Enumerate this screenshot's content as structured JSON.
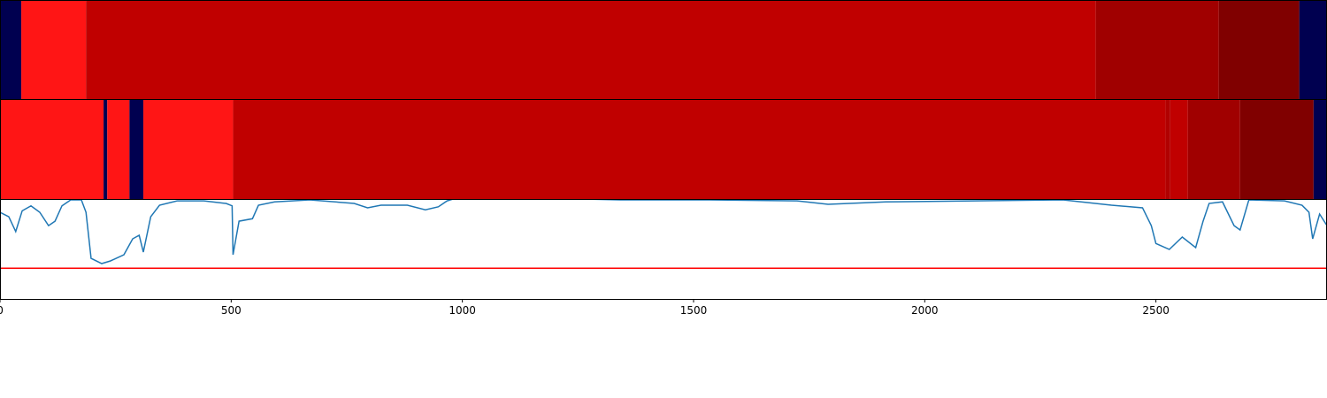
{
  "chart_data": [
    {
      "type": "strip",
      "xlim": [
        0,
        2870
      ],
      "segments": [
        {
          "start": 0,
          "end": 46,
          "color": "#000050"
        },
        {
          "start": 46,
          "end": 186,
          "color": "#ff1515"
        },
        {
          "start": 186,
          "end": 2370,
          "color": "#c00000"
        },
        {
          "start": 2370,
          "end": 2636,
          "color": "#a00000"
        },
        {
          "start": 2636,
          "end": 2810,
          "color": "#800000"
        },
        {
          "start": 2810,
          "end": 2870,
          "color": "#000050"
        }
      ]
    },
    {
      "type": "strip",
      "xlim": [
        0,
        2870
      ],
      "segments": [
        {
          "start": 0,
          "end": 224,
          "color": "#ff1515"
        },
        {
          "start": 224,
          "end": 232,
          "color": "#000050"
        },
        {
          "start": 232,
          "end": 280,
          "color": "#ff1515"
        },
        {
          "start": 280,
          "end": 310,
          "color": "#000050"
        },
        {
          "start": 310,
          "end": 504,
          "color": "#ff1515"
        },
        {
          "start": 504,
          "end": 2521,
          "color": "#c00000"
        },
        {
          "start": 2521,
          "end": 2531,
          "color": "#b00000"
        },
        {
          "start": 2531,
          "end": 2569,
          "color": "#c00000"
        },
        {
          "start": 2569,
          "end": 2682,
          "color": "#a00000"
        },
        {
          "start": 2682,
          "end": 2841,
          "color": "#800000"
        },
        {
          "start": 2841,
          "end": 2870,
          "color": "#000050"
        }
      ]
    },
    {
      "type": "line",
      "xlim": [
        0,
        2870
      ],
      "ylim": [
        0,
        1
      ],
      "xticks": [
        0,
        500,
        1000,
        1500,
        2000,
        2500
      ],
      "hline": {
        "value": 0.31,
        "color": "#ff0000"
      },
      "series": [
        {
          "color": "#1f77b4",
          "x": [
            0,
            19,
            34,
            48,
            67,
            86,
            105,
            119,
            134,
            153,
            176,
            186,
            197,
            220,
            239,
            268,
            287,
            301,
            310,
            326,
            345,
            383,
            441,
            489,
            502,
            504,
            517,
            546,
            559,
            594,
            670,
            766,
            795,
            824,
            881,
            920,
            948,
            967,
            996,
            1149,
            1341,
            1533,
            1724,
            1791,
            1916,
            2107,
            2299,
            2404,
            2471,
            2490,
            2500,
            2529,
            2557,
            2586,
            2602,
            2615,
            2644,
            2669,
            2682,
            2701,
            2778,
            2816,
            2831,
            2839,
            2854,
            2870
          ],
          "values": [
            0.875,
            0.83,
            0.68,
            0.89,
            0.94,
            0.875,
            0.74,
            0.785,
            0.94,
            1.0,
            1.0,
            0.875,
            0.41,
            0.357,
            0.384,
            0.446,
            0.607,
            0.643,
            0.473,
            0.83,
            0.946,
            0.99,
            0.99,
            0.964,
            0.94,
            0.446,
            0.785,
            0.81,
            0.946,
            0.98,
            1.0,
            0.964,
            0.92,
            0.946,
            0.946,
            0.9,
            0.93,
            0.99,
            1.03,
            1.02,
            1.0,
            1.0,
            0.99,
            0.955,
            0.98,
            0.99,
            1.0,
            0.946,
            0.92,
            0.74,
            0.56,
            0.5,
            0.625,
            0.518,
            0.785,
            0.964,
            0.98,
            0.74,
            0.696,
            1.0,
            0.99,
            0.946,
            0.875,
            0.607,
            0.857,
            0.74
          ]
        }
      ]
    }
  ]
}
